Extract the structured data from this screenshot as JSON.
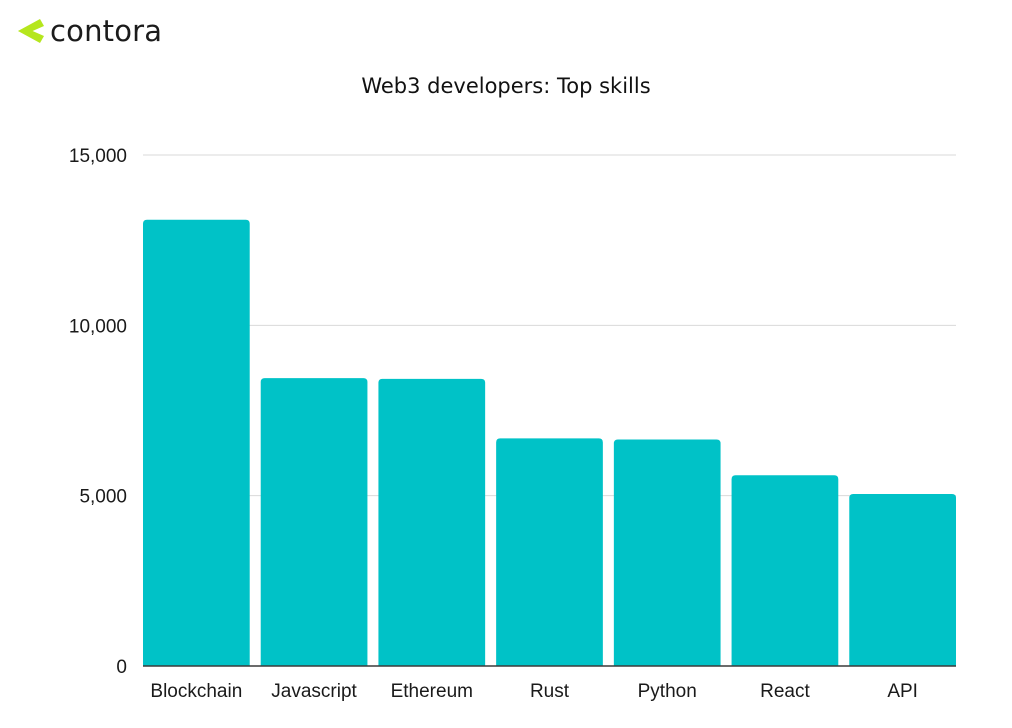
{
  "brand": {
    "name": "contora",
    "mark_color": "#b5e61d",
    "mark_icon": "chevron-left-mark"
  },
  "chart_data": {
    "type": "bar",
    "title": "Web3 developers: Top skills",
    "xlabel": "",
    "ylabel": "",
    "categories": [
      "Blockchain",
      "Javascript",
      "Ethereum",
      "Rust",
      "Python",
      "React",
      "API"
    ],
    "values": [
      13100,
      8450,
      8430,
      6680,
      6650,
      5600,
      5050
    ],
    "ylim": [
      0,
      15000
    ],
    "yticks": [
      0,
      5000,
      10000,
      15000
    ],
    "ytick_labels": [
      "0",
      "5,000",
      "10,000",
      "15,000"
    ],
    "grid": true,
    "bar_color": "#00c2c7",
    "grid_color": "#d9d9d9",
    "axis_color": "#3a3a3a"
  }
}
